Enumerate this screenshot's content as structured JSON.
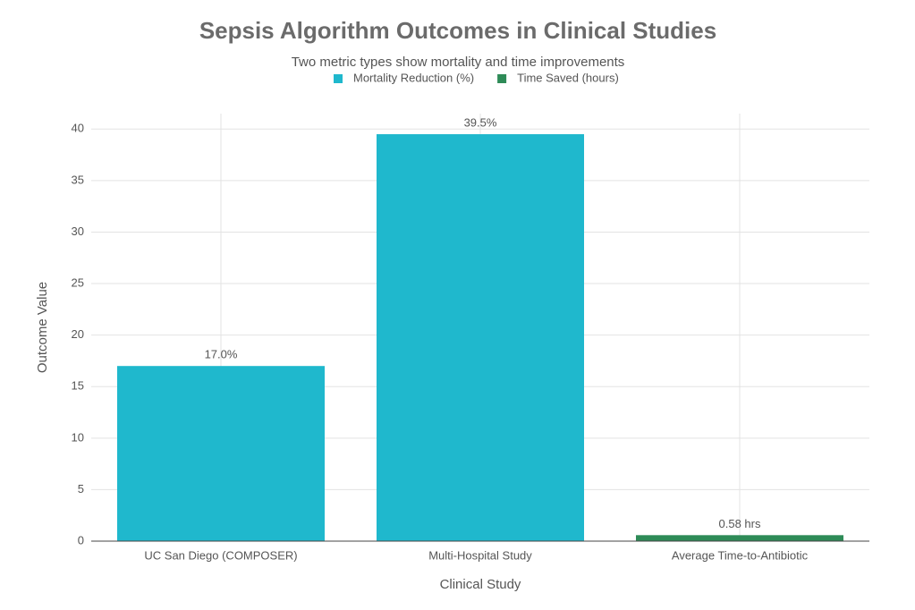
{
  "chart_data": {
    "type": "bar",
    "title": "Sepsis Algorithm Outcomes in Clinical Studies",
    "subtitle": "Two metric types show mortality and time improvements",
    "x_label": "Clinical Study",
    "y_label": "Outcome Value",
    "categories": [
      "UC San Diego (COMPOSER)",
      "Multi-Hospital Study",
      "Average Time-to-Antibiotic"
    ],
    "series": [
      {
        "name": "Mortality Reduction (%)",
        "color": "#1fb8cd",
        "values": [
          17.0,
          39.5,
          null
        ],
        "value_labels": [
          "17.0%",
          "39.5%",
          null
        ]
      },
      {
        "name": "Time Saved (hours)",
        "color": "#2e8b57",
        "values": [
          null,
          null,
          0.58
        ],
        "value_labels": [
          null,
          null,
          "0.58 hrs"
        ]
      }
    ],
    "ylim": [
      0,
      41.5
    ],
    "yticks": [
      0,
      5,
      10,
      15,
      20,
      25,
      30,
      35,
      40
    ],
    "grid": true,
    "legend": "top"
  }
}
